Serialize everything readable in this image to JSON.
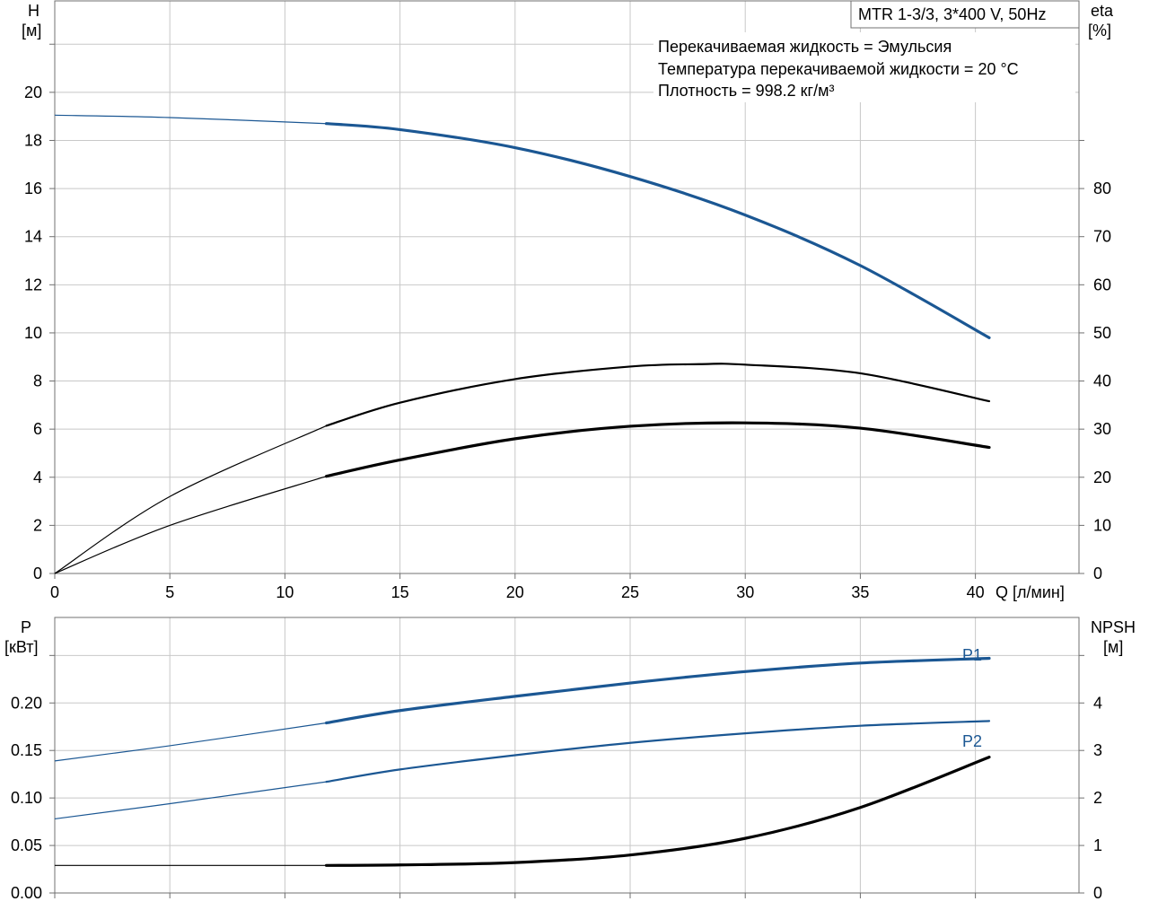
{
  "colors": {
    "blue": "#1b5793",
    "black": "#000000",
    "grid": "#c8c8c8",
    "frame": "#707070"
  },
  "top": {
    "title": "MTR 1-3/3, 3*400 V, 50Hz",
    "info": [
      "Перекачиваемая жидкость = Эмульсия",
      "Температура перекачиваемой жидкости = 20 °C",
      "Плотность = 998.2 кг/м³"
    ],
    "y_left_label": [
      "H",
      "[м]"
    ],
    "y_right_label": [
      "eta",
      "[%]"
    ],
    "x_label": "Q [л/мин]"
  },
  "bottom": {
    "y_left_label": [
      "P",
      "[кВт]"
    ],
    "y_right_label": [
      "NPSH",
      "[м]"
    ],
    "label_p1": "P1",
    "label_p2": "P2"
  },
  "chart_data": [
    {
      "type": "line",
      "title": "MTR 1-3/3, 3*400 V, 50Hz",
      "xlabel": "Q [л/мин]",
      "xlim": [
        0,
        44.5
      ],
      "xticks": [
        0,
        5,
        10,
        15,
        20,
        25,
        30,
        35,
        40
      ],
      "ylabel": "H [м]",
      "ylim": [
        0,
        23.8
      ],
      "yticks": [
        0,
        2,
        4,
        6,
        8,
        10,
        12,
        14,
        16,
        18,
        20
      ],
      "y2label": "eta [%]",
      "y2lim": [
        0,
        119
      ],
      "y2ticks": [
        0,
        10,
        20,
        30,
        40,
        50,
        60,
        70,
        80
      ],
      "grid": true,
      "series": [
        {
          "axis": "left",
          "color": "#1b5793",
          "x": [
            0,
            5,
            11.8,
            15,
            20,
            25,
            30,
            35,
            40.6
          ],
          "y": [
            19.05,
            18.95,
            18.7,
            18.45,
            17.7,
            16.5,
            14.9,
            12.8,
            9.8
          ]
        },
        {
          "axis": "right",
          "color": "#000000",
          "x": [
            0,
            5,
            11.8,
            15,
            20,
            25,
            28,
            30,
            35,
            40.6
          ],
          "y": [
            0,
            16,
            30.7,
            35.5,
            40.4,
            43,
            43.5,
            43.4,
            41.6,
            35.8
          ]
        },
        {
          "axis": "right",
          "color": "#000000",
          "x": [
            0,
            5,
            11.8,
            15,
            20,
            25,
            30,
            35,
            40.6
          ],
          "y": [
            0,
            10,
            20.2,
            23.6,
            28,
            30.6,
            31.3,
            30.2,
            26.2
          ]
        }
      ]
    },
    {
      "type": "line",
      "xlim": [
        0,
        44.5
      ],
      "ylabel": "P [кВт]",
      "ylim": [
        0,
        0.29
      ],
      "yticks": [
        0,
        0.05,
        0.1,
        0.15,
        0.2
      ],
      "ytick_labels": [
        "0.00",
        "0.05",
        "0.10",
        "0.15",
        "0.20"
      ],
      "y2label": "NPSH [м]",
      "y2lim": [
        0,
        5.8
      ],
      "y2ticks": [
        0,
        1,
        2,
        3,
        4
      ],
      "grid": true,
      "series": [
        {
          "name": "P1",
          "axis": "left",
          "color": "#1b5793",
          "x": [
            0,
            5,
            11.8,
            15,
            20,
            25,
            30,
            35,
            40.6
          ],
          "y": [
            0.139,
            0.155,
            0.179,
            0.192,
            0.207,
            0.221,
            0.233,
            0.242,
            0.247
          ]
        },
        {
          "name": "P2",
          "axis": "left",
          "color": "#1b5793",
          "x": [
            0,
            5,
            11.8,
            15,
            20,
            25,
            30,
            35,
            40.6
          ],
          "y": [
            0.078,
            0.094,
            0.117,
            0.13,
            0.145,
            0.158,
            0.168,
            0.176,
            0.181
          ]
        },
        {
          "axis": "right",
          "color": "#000000",
          "x": [
            0,
            5,
            10,
            11.8,
            15,
            20,
            25,
            30,
            35,
            40.6
          ],
          "y": [
            0.58,
            0.58,
            0.58,
            0.58,
            0.59,
            0.64,
            0.8,
            1.15,
            1.8,
            2.86
          ]
        }
      ]
    }
  ]
}
